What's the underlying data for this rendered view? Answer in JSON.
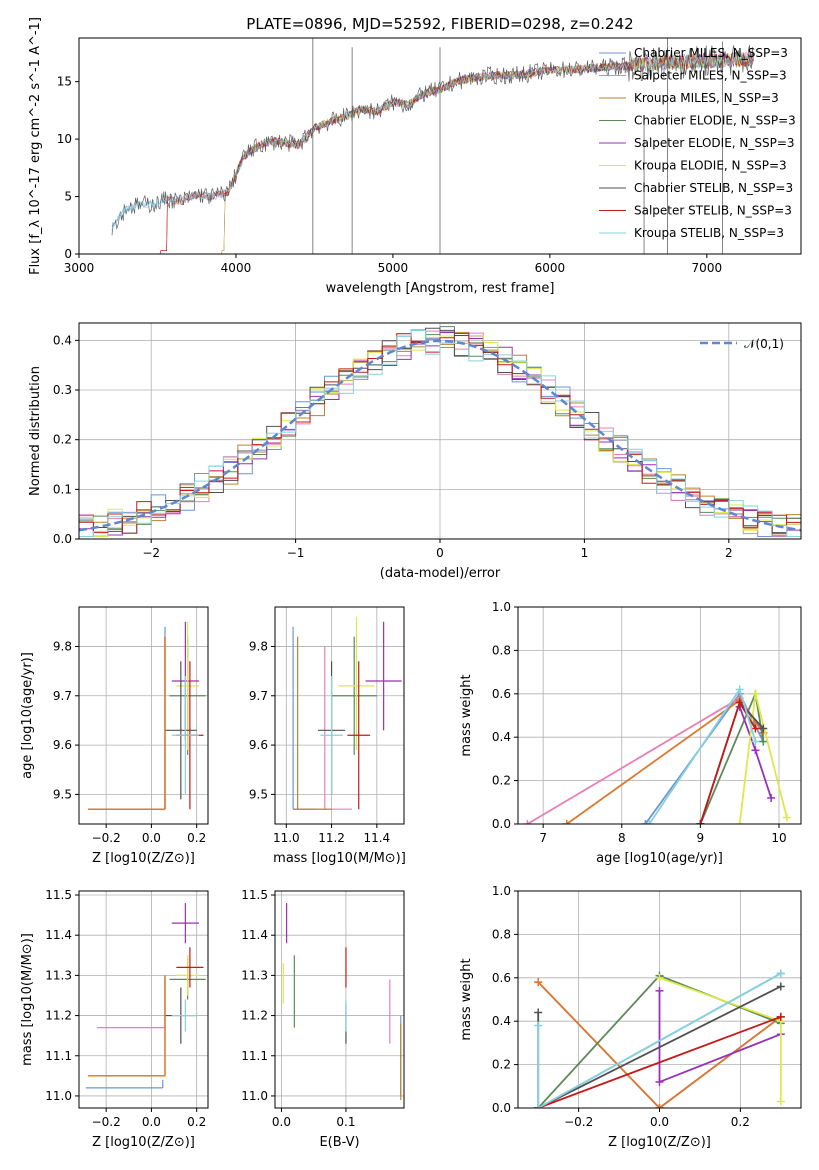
{
  "title": "PLATE=0896, MJD=52592, FIBERID=0298, z=0.242",
  "colors": {
    "Chabrier MILES": "#6f94d8",
    "Salpeter MILES": "#e87fb8",
    "Kroupa MILES": "#b5862f",
    "Chabrier ELODIE": "#5e8a5a",
    "Salpeter ELODIE": "#9a30b8",
    "Kroupa ELODIE": "#dde84a",
    "Chabrier STELIB": "#505050",
    "Salpeter STELIB": "#c41a1a",
    "Kroupa STELIB": "#86d2df",
    "orange": "#d97a2e",
    "gaussian": "#5f86d0"
  },
  "legend_spectrum": [
    "Chabrier MILES, N_SSP=3",
    "Salpeter MILES, N_SSP=3",
    "Kroupa MILES, N_SSP=3",
    "Chabrier ELODIE, N_SSP=3",
    "Salpeter ELODIE, N_SSP=3",
    "Kroupa ELODIE, N_SSP=3",
    "Chabrier STELIB, N_SSP=3",
    "Salpeter STELIB, N_SSP=3",
    "Kroupa STELIB, N_SSP=3"
  ],
  "legend_hist": "𝒩(0,1)",
  "chart_data": [
    {
      "id": "spectrum",
      "type": "line",
      "title": "PLATE=0896, MJD=52592, FIBERID=0298, z=0.242",
      "xlabel": "wavelength [Angstrom, rest frame]",
      "ylabel": "Flux [f_λ 10^-17 erg cm^-2 s^-1 A^-1]",
      "xlim": [
        3000,
        7600
      ],
      "ylim": [
        0,
        18.8
      ],
      "xticks": [
        "3000",
        "4000",
        "5000",
        "6000",
        "7000"
      ],
      "yticks": [
        "0",
        "5",
        "10",
        "15"
      ],
      "x": [
        3200,
        3300,
        3400,
        3500,
        3550,
        3650,
        3750,
        3850,
        3950,
        4050,
        4150,
        4250,
        4400,
        4500,
        4600,
        4700,
        4800,
        4900,
        5000,
        5100,
        5200,
        5300,
        5400,
        5500,
        5600,
        5800,
        6000,
        6200,
        6400,
        6600,
        6800,
        7000,
        7200,
        7300
      ],
      "y": [
        2.2,
        4.0,
        4.3,
        4.4,
        4.8,
        4.6,
        5.2,
        5.0,
        5.4,
        8.5,
        9.5,
        9.8,
        9.5,
        11.0,
        11.5,
        12.0,
        12.6,
        12.4,
        13.2,
        13.0,
        14.0,
        14.3,
        15.0,
        15.3,
        15.5,
        15.6,
        16.0,
        16.1,
        16.3,
        16.5,
        16.7,
        16.8,
        16.9,
        17.0
      ],
      "grid": false
    },
    {
      "id": "residual-histogram",
      "type": "bar",
      "xlabel": "(data-model)/error",
      "ylabel": "Normed distribution",
      "xlim": [
        -2.5,
        2.5
      ],
      "ylim": [
        0,
        0.435
      ],
      "xticks": [
        "−2",
        "−1",
        "0",
        "1",
        "2"
      ],
      "yticks": [
        "0.0",
        "0.1",
        "0.2",
        "0.3",
        "0.4"
      ],
      "bin_width": 0.1,
      "series_profile": [
        0.03,
        0.04,
        0.05,
        0.06,
        0.08,
        0.1,
        0.13,
        0.16,
        0.2,
        0.24,
        0.28,
        0.32,
        0.35,
        0.38,
        0.4,
        0.38,
        0.35,
        0.32,
        0.28,
        0.24,
        0.2,
        0.16,
        0.13,
        0.1,
        0.08,
        0.06,
        0.05,
        0.04,
        0.03
      ],
      "reference_curve": "standard normal",
      "legend": "𝒩(0,1)",
      "grid": true
    },
    {
      "id": "age-vs-metallicity",
      "type": "scatter",
      "xlabel": "Z [log10(Z/Z⊙)]",
      "ylabel": "age [log10(age/yr)]",
      "xlim": [
        -0.32,
        0.25
      ],
      "ylim": [
        9.44,
        9.88
      ],
      "xticks": [
        "−0.2",
        "0.0",
        "0.2"
      ],
      "yticks": [
        "9.5",
        "9.6",
        "9.7",
        "9.8"
      ],
      "points": [
        {
          "s": "Chabrier MILES",
          "x": 0.06,
          "y": 9.47,
          "xerr": [
            0.34,
            0.0
          ],
          "yerr": [
            0.0,
            0.37
          ]
        },
        {
          "s": "Salpeter MILES",
          "x": 0.06,
          "y": 9.47,
          "xerr": [
            0.34,
            0.0
          ],
          "yerr": [
            0.0,
            0.35
          ]
        },
        {
          "s": "Kroupa MILES",
          "x": 0.06,
          "y": 9.47,
          "xerr": [
            0.34,
            0.0
          ],
          "yerr": [
            0.0,
            0.35
          ]
        },
        {
          "s": "Chabrier ELODIE",
          "x": 0.16,
          "y": 9.7,
          "xerr": [
            0.08,
            0.08
          ],
          "yerr": [
            0.12,
            0.12
          ]
        },
        {
          "s": "Salpeter ELODIE",
          "x": 0.15,
          "y": 9.73,
          "xerr": [
            0.06,
            0.06
          ],
          "yerr": [
            0.12,
            0.12
          ]
        },
        {
          "s": "Kroupa ELODIE",
          "x": 0.16,
          "y": 9.72,
          "xerr": [
            0.05,
            0.05
          ],
          "yerr": [
            0.13,
            0.13
          ]
        },
        {
          "s": "Chabrier STELIB",
          "x": 0.13,
          "y": 9.63,
          "xerr": [
            0.07,
            0.07
          ],
          "yerr": [
            0.14,
            0.14
          ]
        },
        {
          "s": "Salpeter STELIB",
          "x": 0.17,
          "y": 9.62,
          "xerr": [
            0.06,
            0.06
          ],
          "yerr": [
            0.15,
            0.15
          ]
        },
        {
          "s": "Kroupa STELIB",
          "x": 0.15,
          "y": 9.62,
          "xerr": [
            0.06,
            0.06
          ],
          "yerr": [
            0.12,
            0.12
          ]
        }
      ],
      "grid": true
    },
    {
      "id": "age-vs-mass",
      "type": "scatter",
      "xlabel": "mass [log10(M/M⊙)]",
      "ylabel": "",
      "xlim": [
        10.95,
        11.52
      ],
      "ylim": [
        9.44,
        9.88
      ],
      "xticks": [
        "11.0",
        "11.2",
        "11.4"
      ],
      "yticks": [
        "9.5",
        "9.6",
        "9.7",
        "9.8"
      ],
      "points": [
        {
          "s": "Chabrier MILES",
          "x": 11.03,
          "y": 9.47,
          "xerr": [
            0.0,
            0.1
          ],
          "yerr": [
            0.0,
            0.37
          ]
        },
        {
          "s": "Salpeter MILES",
          "x": 11.17,
          "y": 9.47,
          "xerr": [
            0.13,
            0.12
          ],
          "yerr": [
            0.0,
            0.33
          ]
        },
        {
          "s": "Kroupa MILES",
          "x": 11.05,
          "y": 9.47,
          "xerr": [
            0.02,
            0.15
          ],
          "yerr": [
            0.0,
            0.35
          ]
        },
        {
          "s": "Chabrier ELODIE",
          "x": 11.3,
          "y": 9.7,
          "xerr": [
            0.1,
            0.1
          ],
          "yerr": [
            0.12,
            0.12
          ]
        },
        {
          "s": "Salpeter ELODIE",
          "x": 11.43,
          "y": 9.73,
          "xerr": [
            0.08,
            0.08
          ],
          "yerr": [
            0.1,
            0.12
          ]
        },
        {
          "s": "Kroupa ELODIE",
          "x": 11.31,
          "y": 9.72,
          "xerr": [
            0.08,
            0.08
          ],
          "yerr": [
            0.13,
            0.14
          ]
        },
        {
          "s": "Chabrier STELIB",
          "x": 11.2,
          "y": 9.63,
          "xerr": [
            0.06,
            0.06
          ],
          "yerr": [
            0.13,
            0.14
          ]
        },
        {
          "s": "Salpeter STELIB",
          "x": 11.32,
          "y": 9.62,
          "xerr": [
            0.05,
            0.05
          ],
          "yerr": [
            0.15,
            0.15
          ]
        },
        {
          "s": "Kroupa STELIB",
          "x": 11.2,
          "y": 9.62,
          "xerr": [
            0.05,
            0.05
          ],
          "yerr": [
            0.12,
            0.12
          ]
        }
      ],
      "grid": true
    },
    {
      "id": "massweight-vs-age",
      "type": "line",
      "xlabel": "age [log10(age/yr)]",
      "ylabel": "mass weight",
      "xlim": [
        6.68,
        10.28
      ],
      "ylim": [
        0,
        1.0
      ],
      "xticks": [
        "7",
        "8",
        "9",
        "10"
      ],
      "yticks": [
        "0.0",
        "0.2",
        "0.4",
        "0.6",
        "0.8",
        "1.0"
      ],
      "series": [
        {
          "s": "Chabrier MILES",
          "x": [
            8.3,
            9.5,
            9.8
          ],
          "y": [
            0.0,
            0.6,
            0.38
          ]
        },
        {
          "s": "Salpeter MILES",
          "x": [
            6.8,
            9.5,
            9.8
          ],
          "y": [
            0.0,
            0.58,
            0.42
          ]
        },
        {
          "s": "Kroupa MILES",
          "x": [
            7.3,
            9.5,
            9.8
          ],
          "y": [
            0.0,
            0.57,
            0.42
          ]
        },
        {
          "s": "Chabrier ELODIE",
          "x": [
            9.0,
            9.7,
            9.8
          ],
          "y": [
            0.0,
            0.6,
            0.38
          ]
        },
        {
          "s": "Salpeter ELODIE",
          "x": [
            9.5,
            9.7,
            9.9
          ],
          "y": [
            0.54,
            0.34,
            0.12
          ]
        },
        {
          "s": "Kroupa ELODIE",
          "x": [
            9.5,
            9.7,
            10.1
          ],
          "y": [
            0.0,
            0.6,
            0.03
          ]
        },
        {
          "s": "Chabrier STELIB",
          "x": [
            9.0,
            9.5,
            9.8
          ],
          "y": [
            0.0,
            0.56,
            0.44
          ]
        },
        {
          "s": "Salpeter STELIB",
          "x": [
            9.0,
            9.5,
            9.7
          ],
          "y": [
            0.0,
            0.56,
            0.44
          ]
        },
        {
          "s": "Kroupa STELIB",
          "x": [
            8.35,
            9.5,
            9.7
          ],
          "y": [
            0.0,
            0.62,
            0.38
          ]
        }
      ],
      "grid": true
    },
    {
      "id": "mass-vs-metallicity",
      "type": "scatter",
      "xlabel": "Z [log10(Z/Z⊙)]",
      "ylabel": "mass [log10(M/M⊙)]",
      "xlim": [
        -0.32,
        0.25
      ],
      "ylim": [
        10.97,
        11.51
      ],
      "xticks": [
        "−0.2",
        "0.0",
        "0.2"
      ],
      "yticks": [
        "11.0",
        "11.1",
        "11.2",
        "11.3",
        "11.4",
        "11.5"
      ],
      "points": [
        {
          "s": "Chabrier MILES",
          "x": 0.05,
          "y": 11.02,
          "xerr": [
            0.34,
            0.0
          ],
          "yerr": [
            0.0,
            0.02
          ]
        },
        {
          "s": "Salpeter MILES",
          "x": 0.06,
          "y": 11.17,
          "xerr": [
            0.3,
            0.0
          ],
          "yerr": [
            0.0,
            0.12
          ]
        },
        {
          "s": "Kroupa MILES",
          "x": 0.06,
          "y": 11.05,
          "xerr": [
            0.34,
            0.0
          ],
          "yerr": [
            0.0,
            0.25
          ]
        },
        {
          "s": "Chabrier ELODIE",
          "x": 0.16,
          "y": 11.29,
          "xerr": [
            0.08,
            0.08
          ],
          "yerr": [
            0.05,
            0.05
          ]
        },
        {
          "s": "Salpeter ELODIE",
          "x": 0.15,
          "y": 11.43,
          "xerr": [
            0.06,
            0.06
          ],
          "yerr": [
            0.05,
            0.05
          ]
        },
        {
          "s": "Kroupa ELODIE",
          "x": 0.16,
          "y": 11.3,
          "xerr": [
            0.05,
            0.05
          ],
          "yerr": [
            0.05,
            0.05
          ]
        },
        {
          "s": "Chabrier STELIB",
          "x": 0.13,
          "y": 11.2,
          "xerr": [
            0.07,
            0.07
          ],
          "yerr": [
            0.07,
            0.07
          ]
        },
        {
          "s": "Salpeter STELIB",
          "x": 0.17,
          "y": 11.32,
          "xerr": [
            0.06,
            0.06
          ],
          "yerr": [
            0.05,
            0.05
          ]
        },
        {
          "s": "Kroupa STELIB",
          "x": 0.15,
          "y": 11.2,
          "xerr": [
            0.06,
            0.06
          ],
          "yerr": [
            0.04,
            0.04
          ]
        }
      ],
      "grid": true
    },
    {
      "id": "mass-vs-ebv",
      "type": "scatter",
      "xlabel": "E(B-V)",
      "ylabel": "",
      "xlim": [
        -0.01,
        0.19
      ],
      "ylim": [
        10.97,
        11.51
      ],
      "xticks": [
        "0.0",
        "0.1"
      ],
      "yticks": [
        "11.0",
        "11.1",
        "11.2",
        "11.3",
        "11.4",
        "11.5"
      ],
      "points": [
        {
          "s": "Chabrier MILES",
          "x": 0.185,
          "y": 11.1,
          "yerr": [
            0.1,
            0.1
          ]
        },
        {
          "s": "Salpeter MILES",
          "x": 0.168,
          "y": 11.2,
          "yerr": [
            0.07,
            0.09
          ]
        },
        {
          "s": "Kroupa MILES",
          "x": 0.185,
          "y": 11.05,
          "yerr": [
            0.06,
            0.13
          ]
        },
        {
          "s": "Chabrier ELODIE",
          "x": 0.02,
          "y": 11.25,
          "yerr": [
            0.08,
            0.1
          ]
        },
        {
          "s": "Salpeter ELODIE",
          "x": 0.008,
          "y": 11.43,
          "yerr": [
            0.05,
            0.05
          ]
        },
        {
          "s": "Kroupa ELODIE",
          "x": 0.003,
          "y": 11.28,
          "yerr": [
            0.05,
            0.05
          ]
        },
        {
          "s": "Chabrier STELIB",
          "x": 0.1,
          "y": 11.18,
          "yerr": [
            0.05,
            0.05
          ]
        },
        {
          "s": "Salpeter STELIB",
          "x": 0.1,
          "y": 11.32,
          "yerr": [
            0.05,
            0.05
          ]
        },
        {
          "s": "Kroupa STELIB",
          "x": 0.1,
          "y": 11.2,
          "yerr": [
            0.04,
            0.04
          ]
        }
      ],
      "grid": true
    },
    {
      "id": "massweight-vs-metallicity",
      "type": "line",
      "xlabel": "Z [log10(Z/Z⊙)]",
      "ylabel": "mass weight",
      "xlim": [
        -0.35,
        0.35
      ],
      "ylim": [
        0,
        1.0
      ],
      "xticks": [
        "−0.2",
        "0.0",
        "0.2"
      ],
      "yticks": [
        "0.0",
        "0.2",
        "0.4",
        "0.6",
        "0.8",
        "1.0"
      ],
      "series": [
        {
          "s": "Chabrier MILES",
          "x": [
            -0.3,
            0.3
          ],
          "y": [
            0.0,
            0.62
          ]
        },
        {
          "s": "Salpeter MILES",
          "x": [
            -0.3,
            0.0,
            0.3
          ],
          "y": [
            0.58,
            0.0,
            0.42
          ]
        },
        {
          "s": "Kroupa MILES",
          "x": [
            -0.3,
            0.0,
            0.3
          ],
          "y": [
            0.58,
            0.0,
            0.42
          ]
        },
        {
          "s": "Chabrier ELODIE",
          "x": [
            -0.3,
            0.0,
            0.3
          ],
          "y": [
            0.0,
            0.61,
            0.39
          ]
        },
        {
          "s": "Salpeter ELODIE",
          "x": [
            0.0,
            0.0,
            0.3
          ],
          "y": [
            0.54,
            0.12,
            0.34
          ]
        },
        {
          "s": "Kroupa ELODIE",
          "x": [
            0.0,
            0.3,
            0.3
          ],
          "y": [
            0.6,
            0.4,
            0.03
          ]
        },
        {
          "s": "Chabrier STELIB",
          "x": [
            -0.3,
            -0.3,
            0.3
          ],
          "y": [
            0.44,
            0.0,
            0.56
          ]
        },
        {
          "s": "Salpeter STELIB",
          "x": [
            -0.3,
            0.3
          ],
          "y": [
            0.0,
            0.42
          ]
        },
        {
          "s": "Kroupa STELIB",
          "x": [
            -0.3,
            -0.3,
            0.3
          ],
          "y": [
            0.38,
            0.0,
            0.62
          ]
        }
      ],
      "grid": true
    }
  ]
}
